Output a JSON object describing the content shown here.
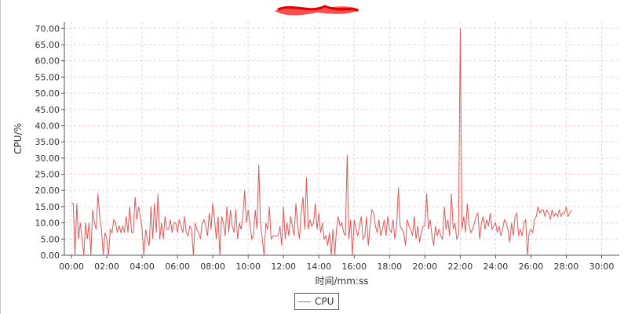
{
  "chart_data": {
    "type": "line",
    "title": "",
    "xlabel": "时间/mm:ss",
    "ylabel": "CPU/%",
    "xlim": [
      -0.4,
      31
    ],
    "ylim": [
      0,
      72
    ],
    "x_ticks": [
      "00:00",
      "02:00",
      "04:00",
      "06:00",
      "08:00",
      "10:00",
      "12:00",
      "14:00",
      "16:00",
      "18:00",
      "20:00",
      "22:00",
      "24:00",
      "26:00",
      "28:00",
      "30:00"
    ],
    "y_ticks": [
      "0.00",
      "5.00",
      "10.00",
      "15.00",
      "20.00",
      "25.00",
      "30.00",
      "35.00",
      "40.00",
      "45.00",
      "50.00",
      "55.00",
      "60.00",
      "65.00",
      "70.00"
    ],
    "grid": true,
    "legend_position": "bottom-center",
    "series": [
      {
        "name": "CPU",
        "color": "#e05a5a",
        "points": [
          [
            0.0,
            16
          ],
          [
            0.1,
            16
          ],
          [
            0.2,
            0
          ],
          [
            0.3,
            16
          ],
          [
            0.4,
            5
          ],
          [
            0.5,
            10
          ],
          [
            0.6,
            5
          ],
          [
            0.7,
            0
          ],
          [
            0.8,
            10
          ],
          [
            0.9,
            5
          ],
          [
            1.0,
            10
          ],
          [
            1.1,
            0
          ],
          [
            1.2,
            14
          ],
          [
            1.3,
            10
          ],
          [
            1.4,
            8
          ],
          [
            1.5,
            19
          ],
          [
            1.6,
            12
          ],
          [
            1.7,
            8
          ],
          [
            1.8,
            0
          ],
          [
            1.9,
            7
          ],
          [
            2.0,
            5
          ],
          [
            2.1,
            0
          ],
          [
            2.2,
            8
          ],
          [
            2.3,
            7
          ],
          [
            2.4,
            11
          ],
          [
            2.5,
            10
          ],
          [
            2.6,
            7
          ],
          [
            2.7,
            9
          ],
          [
            2.8,
            7
          ],
          [
            2.9,
            9
          ],
          [
            3.0,
            7
          ],
          [
            3.1,
            12
          ],
          [
            3.2,
            7
          ],
          [
            3.3,
            15
          ],
          [
            3.4,
            7
          ],
          [
            3.5,
            7
          ],
          [
            3.6,
            18
          ],
          [
            3.7,
            11
          ],
          [
            3.8,
            15
          ],
          [
            3.9,
            12
          ],
          [
            4.0,
            8
          ],
          [
            4.1,
            0
          ],
          [
            4.2,
            8
          ],
          [
            4.3,
            5
          ],
          [
            4.4,
            3
          ],
          [
            4.5,
            15
          ],
          [
            4.6,
            5
          ],
          [
            4.7,
            16
          ],
          [
            4.8,
            7
          ],
          [
            4.9,
            19
          ],
          [
            5.0,
            5
          ],
          [
            5.1,
            10
          ],
          [
            5.2,
            5
          ],
          [
            5.3,
            12
          ],
          [
            5.4,
            8
          ],
          [
            5.5,
            8
          ],
          [
            5.6,
            11
          ],
          [
            5.7,
            7
          ],
          [
            5.8,
            10
          ],
          [
            5.9,
            10
          ],
          [
            6.0,
            7
          ],
          [
            6.1,
            11
          ],
          [
            6.2,
            9
          ],
          [
            6.3,
            7
          ],
          [
            6.4,
            12
          ],
          [
            6.5,
            7
          ],
          [
            6.6,
            6
          ],
          [
            6.7,
            9
          ],
          [
            6.8,
            8
          ],
          [
            6.9,
            0
          ],
          [
            7.0,
            10
          ],
          [
            7.1,
            8
          ],
          [
            7.2,
            7
          ],
          [
            7.3,
            5
          ],
          [
            7.4,
            10
          ],
          [
            7.5,
            11
          ],
          [
            7.6,
            9
          ],
          [
            7.7,
            6
          ],
          [
            7.8,
            13
          ],
          [
            7.9,
            8
          ],
          [
            8.0,
            16
          ],
          [
            8.1,
            11
          ],
          [
            8.2,
            5
          ],
          [
            8.3,
            12
          ],
          [
            8.4,
            0
          ],
          [
            8.5,
            12
          ],
          [
            8.6,
            10
          ],
          [
            8.7,
            6
          ],
          [
            8.8,
            15
          ],
          [
            8.9,
            7
          ],
          [
            9.0,
            14
          ],
          [
            9.1,
            9
          ],
          [
            9.2,
            7
          ],
          [
            9.3,
            14
          ],
          [
            9.4,
            5
          ],
          [
            9.5,
            10
          ],
          [
            9.6,
            8
          ],
          [
            9.7,
            12
          ],
          [
            9.8,
            20
          ],
          [
            9.9,
            10
          ],
          [
            10.0,
            14
          ],
          [
            10.1,
            10
          ],
          [
            10.2,
            5
          ],
          [
            10.3,
            6
          ],
          [
            10.4,
            14
          ],
          [
            10.5,
            8
          ],
          [
            10.6,
            28
          ],
          [
            10.7,
            10
          ],
          [
            10.8,
            5
          ],
          [
            10.9,
            0
          ],
          [
            11.0,
            10
          ],
          [
            11.1,
            8
          ],
          [
            11.2,
            15
          ],
          [
            11.3,
            5
          ],
          [
            11.4,
            6
          ],
          [
            11.5,
            6
          ],
          [
            11.6,
            6
          ],
          [
            11.7,
            6
          ],
          [
            11.8,
            9
          ],
          [
            11.9,
            3
          ],
          [
            12.0,
            15
          ],
          [
            12.1,
            5
          ],
          [
            12.2,
            10
          ],
          [
            12.3,
            6
          ],
          [
            12.4,
            12
          ],
          [
            12.5,
            9
          ],
          [
            12.6,
            6
          ],
          [
            12.7,
            16
          ],
          [
            12.8,
            9
          ],
          [
            12.9,
            5
          ],
          [
            13.0,
            13
          ],
          [
            13.1,
            18
          ],
          [
            13.2,
            8
          ],
          [
            13.3,
            24
          ],
          [
            13.4,
            8
          ],
          [
            13.5,
            11
          ],
          [
            13.6,
            9
          ],
          [
            13.7,
            10
          ],
          [
            13.8,
            16
          ],
          [
            13.9,
            8
          ],
          [
            14.0,
            13
          ],
          [
            14.1,
            7
          ],
          [
            14.2,
            10
          ],
          [
            14.3,
            5
          ],
          [
            14.4,
            6
          ],
          [
            14.5,
            3
          ],
          [
            14.6,
            7
          ],
          [
            14.7,
            0
          ],
          [
            14.8,
            8
          ],
          [
            14.9,
            0
          ],
          [
            15.0,
            8
          ],
          [
            15.1,
            12
          ],
          [
            15.2,
            9
          ],
          [
            15.3,
            10
          ],
          [
            15.4,
            7
          ],
          [
            15.5,
            6
          ],
          [
            15.6,
            31
          ],
          [
            15.7,
            5
          ],
          [
            15.8,
            11
          ],
          [
            15.9,
            0
          ],
          [
            16.0,
            11
          ],
          [
            16.1,
            8
          ],
          [
            16.2,
            6
          ],
          [
            16.3,
            9
          ],
          [
            16.4,
            12
          ],
          [
            16.5,
            5
          ],
          [
            16.6,
            6
          ],
          [
            16.7,
            12
          ],
          [
            16.8,
            3
          ],
          [
            16.9,
            9
          ],
          [
            17.0,
            14
          ],
          [
            17.1,
            13
          ],
          [
            17.2,
            9
          ],
          [
            17.3,
            7
          ],
          [
            17.4,
            11
          ],
          [
            17.5,
            6
          ],
          [
            17.6,
            8
          ],
          [
            17.7,
            11
          ],
          [
            17.8,
            6
          ],
          [
            17.9,
            12
          ],
          [
            18.0,
            8
          ],
          [
            18.1,
            7
          ],
          [
            18.2,
            11
          ],
          [
            18.3,
            5
          ],
          [
            18.4,
            9
          ],
          [
            18.5,
            21
          ],
          [
            18.6,
            9
          ],
          [
            18.7,
            8
          ],
          [
            18.8,
            7
          ],
          [
            18.9,
            3
          ],
          [
            19.0,
            11
          ],
          [
            19.1,
            9
          ],
          [
            19.2,
            8
          ],
          [
            19.3,
            6
          ],
          [
            19.4,
            12
          ],
          [
            19.5,
            5
          ],
          [
            19.6,
            9
          ],
          [
            19.7,
            4
          ],
          [
            19.8,
            7
          ],
          [
            19.9,
            9
          ],
          [
            20.0,
            9
          ],
          [
            20.1,
            19
          ],
          [
            20.2,
            8
          ],
          [
            20.3,
            11
          ],
          [
            20.4,
            6
          ],
          [
            20.5,
            3
          ],
          [
            20.6,
            9
          ],
          [
            20.7,
            6
          ],
          [
            20.8,
            8
          ],
          [
            20.9,
            6
          ],
          [
            21.0,
            5
          ],
          [
            21.1,
            15
          ],
          [
            21.2,
            8
          ],
          [
            21.3,
            11
          ],
          [
            21.4,
            6
          ],
          [
            21.5,
            19
          ],
          [
            21.6,
            8
          ],
          [
            21.7,
            10
          ],
          [
            21.8,
            5
          ],
          [
            21.9,
            6
          ],
          [
            22.0,
            70
          ],
          [
            22.1,
            8
          ],
          [
            22.2,
            12
          ],
          [
            22.3,
            7
          ],
          [
            22.4,
            16
          ],
          [
            22.5,
            9
          ],
          [
            22.6,
            7
          ],
          [
            22.7,
            8
          ],
          [
            22.8,
            10
          ],
          [
            22.9,
            12
          ],
          [
            23.0,
            13
          ],
          [
            23.1,
            5
          ],
          [
            23.2,
            10
          ],
          [
            23.3,
            12
          ],
          [
            23.4,
            8
          ],
          [
            23.5,
            11
          ],
          [
            23.6,
            9
          ],
          [
            23.7,
            13
          ],
          [
            23.8,
            8
          ],
          [
            23.9,
            9
          ],
          [
            24.0,
            10
          ],
          [
            24.1,
            7
          ],
          [
            24.2,
            9
          ],
          [
            24.3,
            6
          ],
          [
            24.4,
            8
          ],
          [
            24.5,
            11
          ],
          [
            24.6,
            10
          ],
          [
            24.7,
            8
          ],
          [
            24.8,
            4
          ],
          [
            24.9,
            10
          ],
          [
            25.0,
            6
          ],
          [
            25.1,
            12
          ],
          [
            25.2,
            13
          ],
          [
            25.3,
            6
          ],
          [
            25.4,
            8
          ],
          [
            25.5,
            6
          ],
          [
            25.6,
            10
          ],
          [
            25.7,
            11
          ],
          [
            25.8,
            0
          ],
          [
            25.9,
            7
          ],
          [
            26.0,
            8
          ],
          [
            26.1,
            7
          ],
          [
            26.2,
            11
          ],
          [
            26.3,
            12
          ],
          [
            26.4,
            15
          ],
          [
            26.5,
            13
          ],
          [
            26.6,
            14
          ],
          [
            26.7,
            14
          ],
          [
            26.8,
            12
          ],
          [
            26.9,
            14
          ],
          [
            27.0,
            13
          ],
          [
            27.1,
            11
          ],
          [
            27.2,
            14
          ],
          [
            27.3,
            12
          ],
          [
            27.4,
            13
          ],
          [
            27.5,
            12
          ],
          [
            27.6,
            14
          ],
          [
            27.7,
            12
          ],
          [
            27.8,
            13
          ],
          [
            27.9,
            13
          ],
          [
            28.0,
            15
          ],
          [
            28.1,
            12
          ],
          [
            28.2,
            13
          ],
          [
            28.3,
            14
          ]
        ]
      }
    ]
  },
  "colors": {
    "line": "#e05a5a",
    "grid": "#e6d6d6",
    "axis": "#555555",
    "redaction": "#ff2a2a"
  }
}
